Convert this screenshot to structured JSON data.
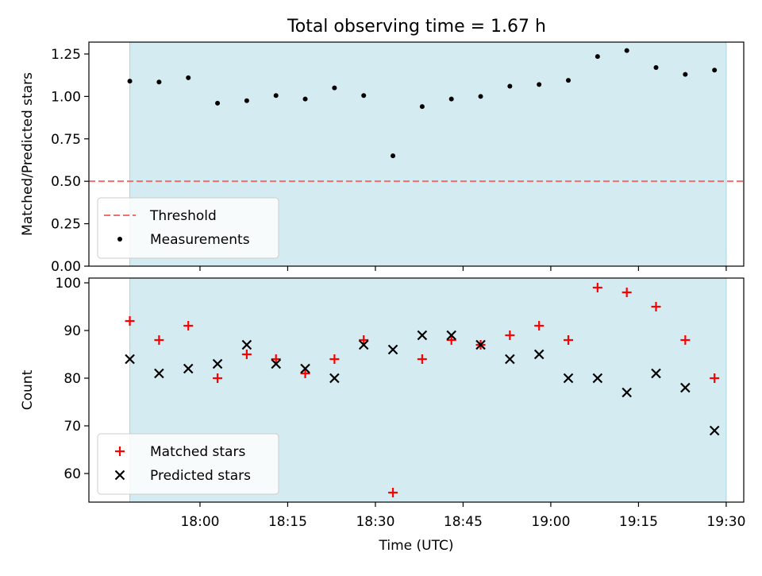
{
  "title": "Total observing time = 1.67 h",
  "colors": {
    "shade": "#d4ebf1",
    "shade_edge": "#a9d4e0",
    "threshold": "#f07070",
    "measurement": "#000000",
    "matched": "#ff0000",
    "predicted": "#000000"
  },
  "chart_data": [
    {
      "type": "scatter",
      "ylabel": "Matched/Predicted stars",
      "ylim": [
        0,
        1.32
      ],
      "yticks": [
        0.0,
        0.25,
        0.5,
        0.75,
        1.0,
        1.25
      ],
      "ytick_labels": [
        "0.00",
        "0.25",
        "0.50",
        "0.75",
        "1.00",
        "1.25"
      ],
      "xlim": [
        "17:41",
        "19:33"
      ],
      "shaded_span": [
        "17:48",
        "19:30"
      ],
      "threshold": {
        "name": "Threshold",
        "value": 0.5
      },
      "legend": "lower-left",
      "series": [
        {
          "name": "Measurements",
          "x": [
            "17:48",
            "17:53",
            "17:58",
            "18:03",
            "18:08",
            "18:13",
            "18:18",
            "18:23",
            "18:28",
            "18:33",
            "18:38",
            "18:43",
            "18:48",
            "18:53",
            "18:58",
            "19:03",
            "19:08",
            "19:13",
            "19:18",
            "19:23",
            "19:28"
          ],
          "values": [
            1.09,
            1.085,
            1.11,
            0.96,
            0.975,
            1.005,
            0.985,
            1.05,
            1.005,
            0.65,
            0.94,
            0.985,
            1.0,
            1.06,
            1.07,
            1.095,
            1.235,
            1.27,
            1.17,
            1.13,
            1.155
          ]
        }
      ]
    },
    {
      "type": "scatter",
      "ylabel": "Count",
      "xlabel": "Time (UTC)",
      "ylim": [
        54,
        101
      ],
      "yticks": [
        60,
        70,
        80,
        90,
        100
      ],
      "ytick_labels": [
        "60",
        "70",
        "80",
        "90",
        "100"
      ],
      "xlim": [
        "17:41",
        "19:33"
      ],
      "xticks": [
        "18:00",
        "18:15",
        "18:30",
        "18:45",
        "19:00",
        "19:15",
        "19:30"
      ],
      "xtick_labels": [
        "18:00",
        "18:15",
        "18:30",
        "18:45",
        "19:00",
        "19:15",
        "19:30"
      ],
      "shaded_span": [
        "17:48",
        "19:30"
      ],
      "legend": "lower-left",
      "series": [
        {
          "name": "Matched stars",
          "marker": "+",
          "x": [
            "17:48",
            "17:53",
            "17:58",
            "18:03",
            "18:08",
            "18:13",
            "18:18",
            "18:23",
            "18:28",
            "18:33",
            "18:38",
            "18:43",
            "18:48",
            "18:53",
            "18:58",
            "19:03",
            "19:08",
            "19:13",
            "19:18",
            "19:23",
            "19:28"
          ],
          "values": [
            92,
            88,
            91,
            80,
            85,
            84,
            81,
            84,
            88,
            56,
            84,
            88,
            87,
            89,
            91,
            88,
            99,
            98,
            95,
            88,
            80
          ]
        },
        {
          "name": "Predicted stars",
          "marker": "x",
          "x": [
            "17:48",
            "17:53",
            "17:58",
            "18:03",
            "18:08",
            "18:13",
            "18:18",
            "18:23",
            "18:28",
            "18:33",
            "18:38",
            "18:43",
            "18:48",
            "18:53",
            "18:58",
            "19:03",
            "19:08",
            "19:13",
            "19:18",
            "19:23",
            "19:28"
          ],
          "values": [
            84,
            81,
            82,
            83,
            87,
            83,
            82,
            80,
            87,
            86,
            89,
            89,
            87,
            84,
            85,
            80,
            80,
            77,
            81,
            78,
            69
          ]
        }
      ]
    }
  ]
}
